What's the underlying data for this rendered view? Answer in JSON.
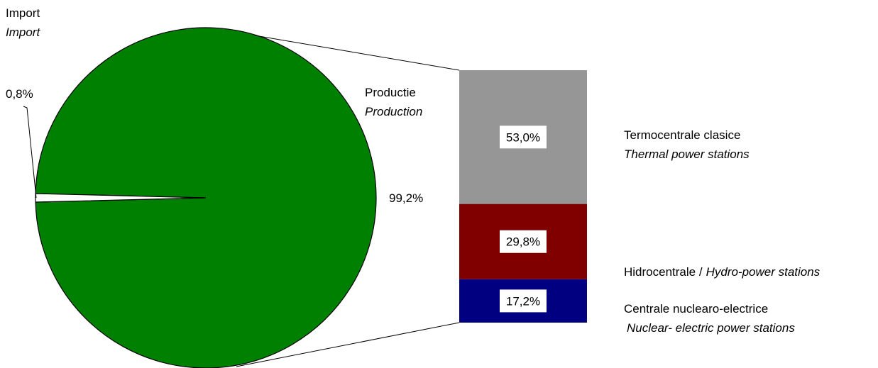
{
  "chart_data": {
    "type": "bar-of-pie",
    "pie": {
      "slices": [
        {
          "name": "Productie",
          "name_en": "Production",
          "value": 99.2,
          "label": "99,2%",
          "color": "#008000"
        },
        {
          "name": "Import",
          "name_en": "Import",
          "value": 0.8,
          "label": "0,8%",
          "color": "#ffffff"
        }
      ]
    },
    "bar": {
      "segments": [
        {
          "name": "Termocentrale clasice",
          "name_en": "Thermal power stations",
          "value": 53.0,
          "label": "53,0%",
          "color": "#969696"
        },
        {
          "name": "Hidrocentrale /",
          "name_en": "Hydro-power stations",
          "value": 29.8,
          "label": "29,8%",
          "color": "#800000"
        },
        {
          "name": "Centrale nuclearo-electrice",
          "name_en": "Nuclear- electric power stations",
          "value": 17.2,
          "label": "17,2%",
          "color": "#000080"
        }
      ]
    }
  }
}
